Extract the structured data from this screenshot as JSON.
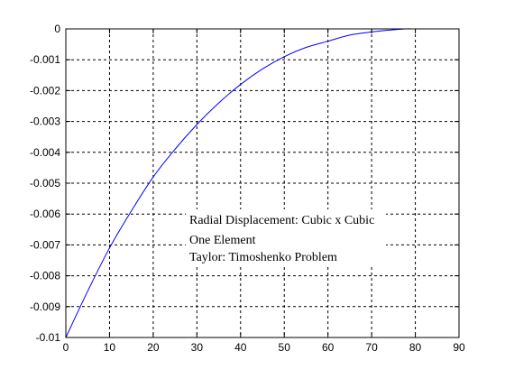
{
  "chart_data": {
    "type": "line",
    "title": "",
    "xlabel": "",
    "ylabel": "",
    "xlim": [
      0,
      90
    ],
    "ylim": [
      -0.01,
      0
    ],
    "xticks": [
      0,
      10,
      20,
      30,
      40,
      50,
      60,
      70,
      80,
      90
    ],
    "xtick_labels": [
      "0",
      "10",
      "20",
      "30",
      "40",
      "50",
      "60",
      "70",
      "80",
      "90"
    ],
    "yticks": [
      0,
      -0.001,
      -0.002,
      -0.003,
      -0.004,
      -0.005,
      -0.006,
      -0.007,
      -0.008,
      -0.009,
      -0.01
    ],
    "ytick_labels": [
      "0",
      "-0.001",
      "-0.002",
      "-0.003",
      "-0.004",
      "-0.005",
      "-0.006",
      "-0.007",
      "-0.008",
      "-0.009",
      "-0.01"
    ],
    "grid": true,
    "series": [
      {
        "color": "#0000ff",
        "x": [
          0,
          5,
          10,
          15,
          20,
          25,
          30,
          35,
          40,
          45,
          50,
          55,
          60,
          65,
          70,
          75,
          78,
          80,
          85,
          90
        ],
        "y": [
          -0.01,
          -0.0085,
          -0.0071,
          -0.0059,
          -0.0048,
          -0.0039,
          -0.0031,
          -0.0024,
          -0.0018,
          -0.0013,
          -0.0009,
          -0.0006,
          -0.0004,
          -0.0002,
          -0.0001,
          -3e-05,
          0,
          0,
          0,
          0
        ]
      }
    ],
    "annotations": [
      "Radial Displacement: Cubic x Cubic",
      "One Element",
      "Taylor: Timoshenko Problem"
    ]
  }
}
